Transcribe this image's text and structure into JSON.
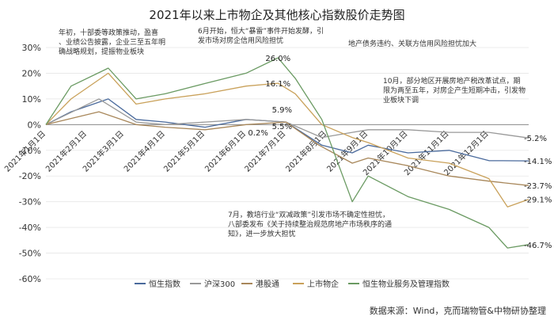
{
  "chart_data": {
    "type": "line",
    "title": "2021年以来上市物企及其他核心指数股价走势图",
    "source": "数据来源：Wind，克而瑞物管&中物研协整理",
    "ylim": [
      -60,
      30
    ],
    "yticks": [
      30,
      20,
      10,
      0,
      -10,
      -20,
      -30,
      -40,
      -50,
      -60
    ],
    "ytick_labels": [
      "30%",
      "20%",
      "10%",
      "0%",
      "-10%",
      "-20%",
      "-30%",
      "-40%",
      "-50%",
      "-60%"
    ],
    "x_range": [
      "2021-01-01",
      "2021-12-31"
    ],
    "xtick_dates": [
      "2021-01-01",
      "2021-02-01",
      "2021-03-01",
      "2021-04-01",
      "2021-05-01",
      "2021-06-01",
      "2021-07-01",
      "2021-08-01",
      "2021-09-01",
      "2021-10-01",
      "2021-11-01",
      "2021-12-01"
    ],
    "xtick_labels": [
      "2021年1月1日",
      "2021年2月1日",
      "2021年3月1日",
      "2021年4月1日",
      "2021年5月1日",
      "2021年6月1日",
      "2021年7月1日",
      "2021年8月1日",
      "2021年9月1日",
      "2021年10月1日",
      "2021年11月1日",
      "2021年12月1日"
    ],
    "series": [
      {
        "name": "恒生指数",
        "color": "#4a6a9c",
        "x": [
          "2021-01-01",
          "2021-01-20",
          "2021-02-17",
          "2021-03-10",
          "2021-04-01",
          "2021-05-01",
          "2021-06-01",
          "2021-07-01",
          "2021-07-28",
          "2021-08-20",
          "2021-09-01",
          "2021-10-01",
          "2021-11-01",
          "2021-12-01",
          "2021-12-31"
        ],
        "y": [
          0,
          5,
          10,
          2,
          1,
          -1,
          2,
          1,
          -8,
          -11,
          -8,
          -11,
          -10,
          -14,
          -14.1
        ]
      },
      {
        "name": "沪深300",
        "color": "#999999",
        "x": [
          "2021-01-01",
          "2021-02-10",
          "2021-03-10",
          "2021-04-01",
          "2021-05-01",
          "2021-06-01",
          "2021-07-01",
          "2021-07-28",
          "2021-08-20",
          "2021-09-01",
          "2021-10-01",
          "2021-11-01",
          "2021-12-01",
          "2021-12-31"
        ],
        "y": [
          0,
          10,
          1,
          0,
          1,
          2,
          1,
          -5,
          -3,
          -2,
          -2,
          -3,
          -3,
          -5.2
        ]
      },
      {
        "name": "港股通",
        "color": "#a8875a",
        "x": [
          "2021-01-01",
          "2021-02-10",
          "2021-03-10",
          "2021-04-01",
          "2021-05-01",
          "2021-06-01",
          "2021-07-01",
          "2021-07-26",
          "2021-08-20",
          "2021-09-01",
          "2021-10-01",
          "2021-11-01",
          "2021-12-01",
          "2021-12-31"
        ],
        "y": [
          0,
          5,
          0,
          -1,
          -2,
          0,
          1,
          -8,
          -15,
          -13,
          -16,
          -20,
          -22,
          -23.7
        ]
      },
      {
        "name": "上市物企",
        "color": "#c9a15a",
        "x": [
          "2021-01-01",
          "2021-01-20",
          "2021-02-17",
          "2021-03-10",
          "2021-04-01",
          "2021-05-01",
          "2021-06-01",
          "2021-06-25",
          "2021-07-08",
          "2021-07-28",
          "2021-08-20",
          "2021-09-01",
          "2021-10-01",
          "2021-11-01",
          "2021-12-01",
          "2021-12-15",
          "2021-12-31"
        ],
        "y": [
          0,
          10,
          20,
          8,
          10,
          12,
          15,
          16.1,
          12,
          0,
          -5,
          -7,
          -13,
          -15,
          -21,
          -32,
          -29.1
        ]
      },
      {
        "name": "恒生物业服务及管理指数",
        "color": "#6a9a62",
        "x": [
          "2021-01-01",
          "2021-01-20",
          "2021-02-17",
          "2021-03-10",
          "2021-04-01",
          "2021-05-01",
          "2021-06-01",
          "2021-06-25",
          "2021-07-08",
          "2021-07-28",
          "2021-08-20",
          "2021-09-01",
          "2021-10-01",
          "2021-11-01",
          "2021-12-01",
          "2021-12-15",
          "2021-12-31"
        ],
        "y": [
          0,
          15,
          22,
          10,
          12,
          16,
          20,
          26.0,
          18,
          2,
          -30,
          -20,
          -28,
          -33,
          -40,
          -48,
          -46.7
        ]
      }
    ],
    "data_labels": [
      {
        "text": "26.0%",
        "series": "恒生物业服务及管理指数",
        "x": "2021-06-25",
        "y": 26.0
      },
      {
        "text": "16.1%",
        "series": "上市物企",
        "x": "2021-06-25",
        "y": 16.1
      },
      {
        "text": "5.9%",
        "x": "2021-06-28",
        "y": 5.9
      },
      {
        "text": "5.5%",
        "x": "2021-06-28",
        "y": -0.5
      },
      {
        "text": "0.2%",
        "x": "2021-06-10",
        "y": -3
      },
      {
        "text": "-5.2%",
        "series": "沪深300",
        "x": "2021-12-31",
        "y": -5.2
      },
      {
        "text": "-14.1%",
        "series": "恒生指数",
        "x": "2021-12-31",
        "y": -14.1
      },
      {
        "text": "-23.7%",
        "series": "港股通",
        "x": "2021-12-31",
        "y": -23.7
      },
      {
        "text": "-29.1%",
        "series": "上市物企",
        "x": "2021-12-31",
        "y": -29.1
      },
      {
        "text": "-46.7%",
        "series": "恒生物业服务及管理指数",
        "x": "2021-12-31",
        "y": -46.7
      }
    ],
    "annotations": [
      "年初，十部委等政策推动，盈喜、业绩公告披露，企业三至五年明确战略规划，提振物业板块",
      "6月开始，恒大“暴雷”事件开始发酵，引发市场对房企信用风险担忧",
      "地产债务违约、关联方信用风险担忧加大",
      "10月，部分地区开展房地产税改革试点，期限为两至五年，对房企产生短期冲击，引发物业板块下调",
      "7月，教培行业“双减政策”引发市场不确定性担忧，八部委发布《关于持续整治规范房地产市场秩序的通知》，进一步放大担忧"
    ],
    "legend_position": "bottom",
    "grid": true
  }
}
